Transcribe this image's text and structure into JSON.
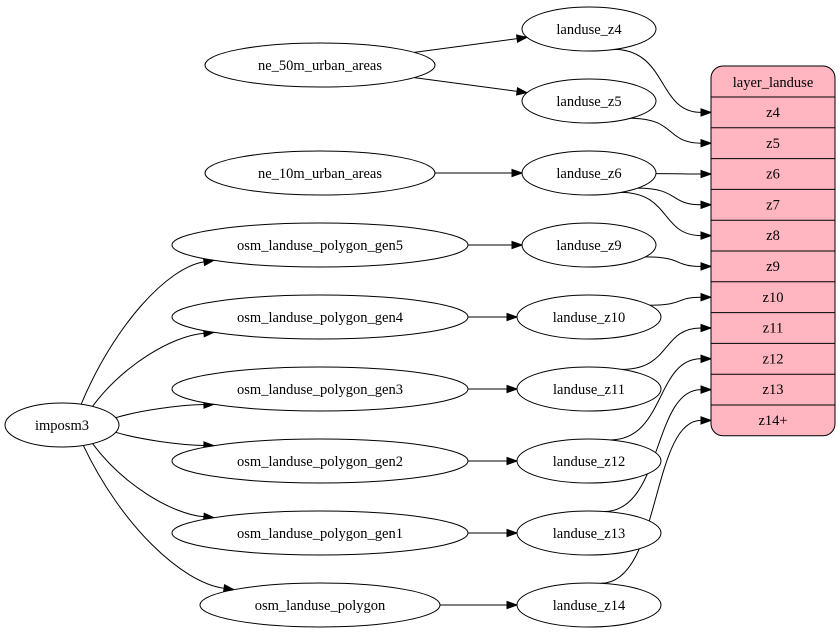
{
  "colors": {
    "record_fill": "#ffb6c1",
    "stroke": "#000000",
    "node_fill": "#ffffff"
  },
  "nodes": [
    {
      "id": "ne50",
      "label": "ne_50m_urban_areas"
    },
    {
      "id": "ne10",
      "label": "ne_10m_urban_areas"
    },
    {
      "id": "gen5",
      "label": "osm_landuse_polygon_gen5"
    },
    {
      "id": "gen4",
      "label": "osm_landuse_polygon_gen4"
    },
    {
      "id": "gen3",
      "label": "osm_landuse_polygon_gen3"
    },
    {
      "id": "gen2",
      "label": "osm_landuse_polygon_gen2"
    },
    {
      "id": "gen1",
      "label": "osm_landuse_polygon_gen1"
    },
    {
      "id": "poly",
      "label": "osm_landuse_polygon"
    },
    {
      "id": "imposm3",
      "label": "imposm3"
    },
    {
      "id": "lz4",
      "label": "landuse_z4"
    },
    {
      "id": "lz5",
      "label": "landuse_z5"
    },
    {
      "id": "lz6",
      "label": "landuse_z6"
    },
    {
      "id": "lz9",
      "label": "landuse_z9"
    },
    {
      "id": "lz10",
      "label": "landuse_z10"
    },
    {
      "id": "lz11",
      "label": "landuse_z11"
    },
    {
      "id": "lz12",
      "label": "landuse_z12"
    },
    {
      "id": "lz13",
      "label": "landuse_z13"
    },
    {
      "id": "lz14",
      "label": "landuse_z14"
    }
  ],
  "record": {
    "title": "layer_landuse",
    "fields": [
      "z4",
      "z5",
      "z6",
      "z7",
      "z8",
      "z9",
      "z10",
      "z11",
      "z12",
      "z13",
      "z14+"
    ]
  },
  "edges": [
    [
      "ne50",
      "lz4"
    ],
    [
      "ne50",
      "lz5"
    ],
    [
      "ne10",
      "lz6"
    ],
    [
      "gen5",
      "lz9"
    ],
    [
      "gen4",
      "lz10"
    ],
    [
      "gen3",
      "lz11"
    ],
    [
      "gen2",
      "lz12"
    ],
    [
      "gen1",
      "lz13"
    ],
    [
      "poly",
      "lz14"
    ],
    [
      "imposm3",
      "gen5"
    ],
    [
      "imposm3",
      "gen4"
    ],
    [
      "imposm3",
      "gen3"
    ],
    [
      "imposm3",
      "gen2"
    ],
    [
      "imposm3",
      "gen1"
    ],
    [
      "imposm3",
      "poly"
    ],
    [
      "lz4",
      "field:z4"
    ],
    [
      "lz5",
      "field:z5"
    ],
    [
      "lz6",
      "field:z6"
    ],
    [
      "lz6",
      "field:z7"
    ],
    [
      "lz6",
      "field:z8"
    ],
    [
      "lz9",
      "field:z9"
    ],
    [
      "lz10",
      "field:z10"
    ],
    [
      "lz11",
      "field:z11"
    ],
    [
      "lz12",
      "field:z12"
    ],
    [
      "lz13",
      "field:z13"
    ],
    [
      "lz14",
      "field:z14+"
    ]
  ]
}
